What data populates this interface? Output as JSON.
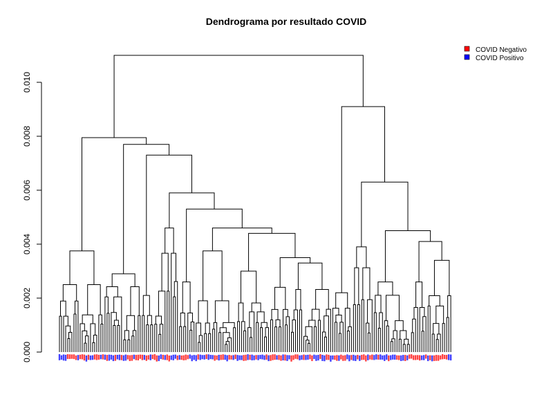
{
  "chart_data": {
    "type": "dendrogram",
    "title": "Dendrograma por resultado COVID",
    "xlabel": "",
    "ylabel": "",
    "ylim": [
      0,
      0.0112
    ],
    "yticks": [
      "0.000",
      "0.002",
      "0.004",
      "0.006",
      "0.008",
      "0.010"
    ],
    "ytick_values": [
      0,
      0.002,
      0.004,
      0.006,
      0.008,
      0.01
    ],
    "legend": {
      "position": "top-right",
      "entries": [
        {
          "label": "COVID Negativo",
          "color": "#ff0000"
        },
        {
          "label": "COVID Positivo",
          "color": "#0000ff"
        }
      ]
    },
    "leaf_colors": {
      "negative": "#ff0000",
      "positive": "#0000ff"
    },
    "leaf_count": 220,
    "merges": [
      {
        "name": "root",
        "height": 0.011
      },
      {
        "name": "left-main",
        "height": 0.00795
      },
      {
        "name": "right-main",
        "height": 0.0091
      },
      {
        "name": "left-mid",
        "height": 0.0077
      },
      {
        "name": "left-inner",
        "height": 0.0073
      },
      {
        "name": "right-mid",
        "height": 0.0063
      },
      {
        "name": "left-deep",
        "height": 0.0059
      },
      {
        "name": "left-deeper",
        "height": 0.0053
      },
      {
        "name": "left-deepest",
        "height": 0.0046
      },
      {
        "name": "right-inner",
        "height": 0.0045
      },
      {
        "name": "mid-cluster",
        "height": 0.0044
      },
      {
        "name": "right-small",
        "height": 0.0041
      },
      {
        "name": "far-left",
        "height": 0.00375
      },
      {
        "name": "mid-left",
        "height": 0.00375
      }
    ]
  }
}
